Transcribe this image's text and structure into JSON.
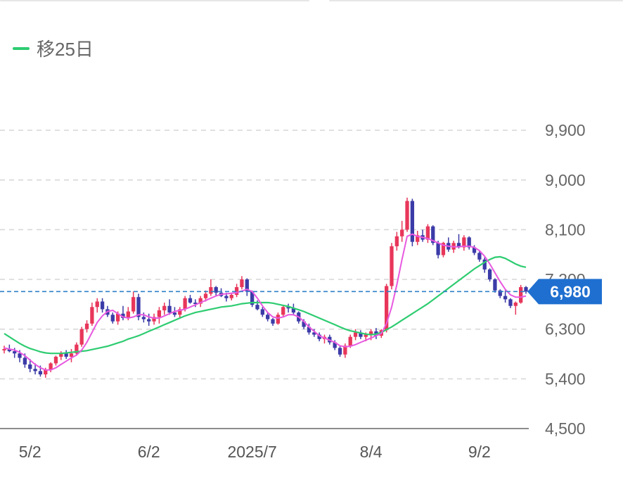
{
  "legend": {
    "label": "移25日",
    "color": "#2ecc71"
  },
  "chart_data": {
    "type": "candlestick",
    "ylim": [
      4500,
      10300
    ],
    "yticks": [
      {
        "value": 9900,
        "label": "9,900"
      },
      {
        "value": 9000,
        "label": "9,000"
      },
      {
        "value": 8100,
        "label": "8,100"
      },
      {
        "value": 7200,
        "label": "7,200"
      },
      {
        "value": 6300,
        "label": "6,300"
      },
      {
        "value": 5400,
        "label": "5,400"
      },
      {
        "value": 4500,
        "label": "4,500"
      }
    ],
    "xticks": [
      {
        "index": 5,
        "label": "5/2"
      },
      {
        "index": 28,
        "label": "6/2"
      },
      {
        "index": 48,
        "label": "2025/7"
      },
      {
        "index": 71,
        "label": "8/4"
      },
      {
        "index": 92,
        "label": "9/2"
      }
    ],
    "current_price": {
      "value": 6980,
      "label": "6,980"
    },
    "colors": {
      "up": "#e8365a",
      "down": "#3b3ba8",
      "ma5": "#e859e0",
      "ma25": "#2ecc71",
      "price_line": "#2f80c7",
      "tag": "#1f6fd0"
    },
    "ohlc": [
      [
        5920,
        6000,
        5860,
        5940
      ],
      [
        5940,
        6020,
        5880,
        5900
      ],
      [
        5900,
        5960,
        5780,
        5860
      ],
      [
        5860,
        5920,
        5700,
        5780
      ],
      [
        5780,
        5860,
        5600,
        5660
      ],
      [
        5660,
        5760,
        5520,
        5580
      ],
      [
        5580,
        5680,
        5480,
        5540
      ],
      [
        5540,
        5640,
        5440,
        5480
      ],
      [
        5480,
        5600,
        5420,
        5560
      ],
      [
        5560,
        5700,
        5520,
        5680
      ],
      [
        5680,
        5820,
        5640,
        5800
      ],
      [
        5800,
        5900,
        5740,
        5860
      ],
      [
        5860,
        5920,
        5760,
        5800
      ],
      [
        5800,
        5940,
        5700,
        5860
      ],
      [
        5860,
        6060,
        5820,
        6020
      ],
      [
        6020,
        6340,
        5980,
        6300
      ],
      [
        6300,
        6460,
        6240,
        6400
      ],
      [
        6400,
        6780,
        6360,
        6700
      ],
      [
        6700,
        6860,
        6600,
        6800
      ],
      [
        6800,
        6860,
        6600,
        6660
      ],
      [
        6660,
        6720,
        6520,
        6560
      ],
      [
        6560,
        6600,
        6400,
        6440
      ],
      [
        6440,
        6620,
        6380,
        6580
      ],
      [
        6580,
        6720,
        6460,
        6500
      ],
      [
        6500,
        6700,
        6460,
        6620
      ],
      [
        6620,
        6980,
        6580,
        6880
      ],
      [
        6880,
        6940,
        6460,
        6520
      ],
      [
        6520,
        6600,
        6420,
        6480
      ],
      [
        6480,
        6580,
        6360,
        6440
      ],
      [
        6440,
        6580,
        6380,
        6520
      ],
      [
        6520,
        6700,
        6400,
        6640
      ],
      [
        6640,
        6780,
        6560,
        6720
      ],
      [
        6720,
        6840,
        6560,
        6600
      ],
      [
        6600,
        6700,
        6520,
        6560
      ],
      [
        6560,
        6700,
        6500,
        6660
      ],
      [
        6660,
        6900,
        6620,
        6860
      ],
      [
        6860,
        6920,
        6760,
        6780
      ],
      [
        6780,
        6840,
        6700,
        6760
      ],
      [
        6760,
        6900,
        6700,
        6860
      ],
      [
        6860,
        7000,
        6800,
        6940
      ],
      [
        6940,
        7200,
        6900,
        7060
      ],
      [
        7060,
        7080,
        6900,
        6960
      ],
      [
        6960,
        7040,
        6880,
        6900
      ],
      [
        6900,
        6960,
        6800,
        6860
      ],
      [
        6860,
        6960,
        6820,
        6920
      ],
      [
        6920,
        7120,
        6880,
        7060
      ],
      [
        7060,
        7260,
        7020,
        7200
      ],
      [
        7200,
        7220,
        6900,
        6980
      ],
      [
        6980,
        7000,
        6700,
        6740
      ],
      [
        6740,
        6820,
        6640,
        6660
      ],
      [
        6660,
        6700,
        6520,
        6560
      ],
      [
        6560,
        6600,
        6440,
        6480
      ],
      [
        6480,
        6500,
        6360,
        6400
      ],
      [
        6400,
        6600,
        6380,
        6560
      ],
      [
        6560,
        6740,
        6520,
        6700
      ],
      [
        6700,
        6760,
        6600,
        6680
      ],
      [
        6680,
        6760,
        6560,
        6600
      ],
      [
        6600,
        6620,
        6400,
        6440
      ],
      [
        6440,
        6480,
        6300,
        6340
      ],
      [
        6340,
        6400,
        6200,
        6240
      ],
      [
        6240,
        6300,
        6160,
        6200
      ],
      [
        6200,
        6240,
        6080,
        6120
      ],
      [
        6120,
        6200,
        6040,
        6160
      ],
      [
        6160,
        6200,
        6020,
        6060
      ],
      [
        6060,
        6100,
        5920,
        5960
      ],
      [
        5960,
        6000,
        5800,
        5840
      ],
      [
        5840,
        6040,
        5780,
        6000
      ],
      [
        6000,
        6200,
        5960,
        6160
      ],
      [
        6160,
        6300,
        6100,
        6240
      ],
      [
        6240,
        6280,
        6120,
        6160
      ],
      [
        6160,
        6240,
        6080,
        6200
      ],
      [
        6200,
        6300,
        6100,
        6260
      ],
      [
        6260,
        6320,
        6120,
        6180
      ],
      [
        6180,
        6300,
        6140,
        6280
      ],
      [
        6280,
        7120,
        6240,
        7080
      ],
      [
        7080,
        7860,
        7020,
        7800
      ],
      [
        7800,
        8060,
        7720,
        7980
      ],
      [
        7980,
        8260,
        7880,
        8100
      ],
      [
        8100,
        8680,
        8060,
        8620
      ],
      [
        8620,
        8660,
        7800,
        7880
      ],
      [
        7880,
        8080,
        7820,
        8000
      ],
      [
        8000,
        8100,
        7880,
        7920
      ],
      [
        7920,
        8200,
        7860,
        8160
      ],
      [
        8160,
        8180,
        7820,
        7860
      ],
      [
        7860,
        7900,
        7580,
        7640
      ],
      [
        7640,
        7880,
        7600,
        7860
      ],
      [
        7860,
        7960,
        7700,
        7740
      ],
      [
        7740,
        7900,
        7680,
        7860
      ],
      [
        7860,
        8020,
        7760,
        7780
      ],
      [
        7780,
        8000,
        7720,
        7960
      ],
      [
        7960,
        7980,
        7740,
        7780
      ],
      [
        7780,
        7820,
        7640,
        7680
      ],
      [
        7680,
        7720,
        7520,
        7560
      ],
      [
        7560,
        7600,
        7320,
        7380
      ],
      [
        7380,
        7400,
        7160,
        7200
      ],
      [
        7200,
        7220,
        6960,
        7000
      ],
      [
        7000,
        7020,
        6860,
        6900
      ],
      [
        6900,
        7000,
        6780,
        6840
      ],
      [
        6840,
        6860,
        6680,
        6720
      ],
      [
        6720,
        6800,
        6560,
        6780
      ],
      [
        6780,
        7100,
        6760,
        7060
      ],
      [
        7060,
        7080,
        6940,
        6980
      ]
    ],
    "ma5": [
      5960,
      5940,
      5920,
      5880,
      5820,
      5740,
      5660,
      5600,
      5560,
      5560,
      5600,
      5660,
      5720,
      5780,
      5830,
      5920,
      6060,
      6240,
      6420,
      6540,
      6620,
      6640,
      6580,
      6520,
      6500,
      6520,
      6560,
      6560,
      6520,
      6500,
      6500,
      6540,
      6580,
      6620,
      6640,
      6660,
      6700,
      6740,
      6780,
      6820,
      6860,
      6900,
      6930,
      6940,
      6950,
      6960,
      6990,
      7020,
      6980,
      6860,
      6720,
      6600,
      6520,
      6500,
      6520,
      6560,
      6560,
      6520,
      6440,
      6340,
      6260,
      6180,
      6140,
      6100,
      6060,
      6000,
      5980,
      5990,
      6020,
      6060,
      6100,
      6140,
      6180,
      6220,
      6400,
      6700,
      7100,
      7560,
      7980,
      8020,
      7980,
      7960,
      7940,
      7900,
      7860,
      7820,
      7800,
      7790,
      7790,
      7800,
      7800,
      7780,
      7720,
      7620,
      7480,
      7320,
      7160,
      7020,
      6920,
      6880,
      6880,
      6900
    ],
    "ma25": [
      6220,
      6160,
      6100,
      6040,
      5990,
      5950,
      5920,
      5890,
      5870,
      5860,
      5860,
      5860,
      5870,
      5880,
      5890,
      5900,
      5910,
      5930,
      5950,
      5970,
      5990,
      6020,
      6050,
      6080,
      6120,
      6150,
      6180,
      6220,
      6260,
      6300,
      6340,
      6380,
      6420,
      6460,
      6500,
      6540,
      6570,
      6600,
      6620,
      6640,
      6660,
      6680,
      6700,
      6710,
      6720,
      6740,
      6760,
      6770,
      6780,
      6780,
      6780,
      6780,
      6770,
      6750,
      6730,
      6710,
      6680,
      6650,
      6620,
      6580,
      6540,
      6500,
      6460,
      6420,
      6380,
      6340,
      6300,
      6270,
      6250,
      6230,
      6210,
      6200,
      6210,
      6240,
      6290,
      6340,
      6400,
      6460,
      6520,
      6580,
      6640,
      6700,
      6760,
      6830,
      6900,
      6970,
      7040,
      7110,
      7180,
      7250,
      7320,
      7390,
      7450,
      7510,
      7560,
      7600,
      7610,
      7580,
      7530,
      7480,
      7440,
      7420
    ]
  }
}
